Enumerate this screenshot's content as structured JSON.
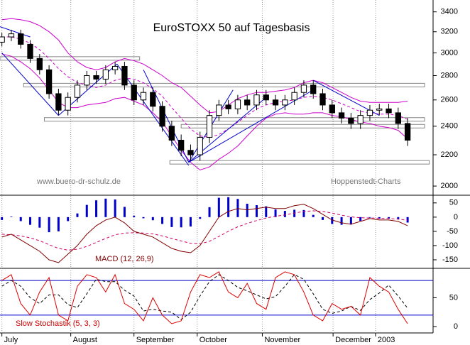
{
  "chart_data": {
    "type": "candlestick",
    "title": "EuroSTOXX 50 auf Tagesbasis",
    "watermark": "www.buero-dr-schulz.de",
    "source": "Hoppenstedt-Charts",
    "xlim": [
      -0.2,
      45.7
    ],
    "xticks": [
      {
        "value": 0,
        "label": "July"
      },
      {
        "value": 7.3,
        "label": "August"
      },
      {
        "value": 14,
        "label": "September"
      },
      {
        "value": 20.7,
        "label": "October"
      },
      {
        "value": 27.6,
        "label": "November"
      },
      {
        "value": 35.1,
        "label": "December"
      },
      {
        "value": 39.6,
        "label": "2003"
      }
    ],
    "grid": true,
    "price": {
      "ylim": [
        1945,
        3525
      ],
      "log": true,
      "yticks": [
        2000,
        2200,
        2400,
        2600,
        2800,
        3000,
        3200,
        3400
      ],
      "up_color": "#ffffff",
      "down_color": "#000000",
      "open": [
        3100,
        3150,
        3180,
        3080,
        2950,
        2850,
        2650,
        2520,
        2620,
        2720,
        2800,
        2770,
        2850,
        2880,
        2720,
        2600,
        2660,
        2550,
        2400,
        2300,
        2230,
        2200,
        2320,
        2480,
        2560,
        2530,
        2600,
        2560,
        2640,
        2600,
        2560,
        2600,
        2660,
        2720,
        2650,
        2560,
        2500,
        2460,
        2420,
        2480,
        2520,
        2530,
        2500,
        2420
      ],
      "high": [
        3190,
        3220,
        3220,
        3120,
        2990,
        2890,
        2690,
        2660,
        2760,
        2840,
        2840,
        2890,
        2920,
        2920,
        2760,
        2700,
        2700,
        2590,
        2440,
        2340,
        2270,
        2360,
        2520,
        2600,
        2600,
        2640,
        2640,
        2680,
        2680,
        2640,
        2640,
        2700,
        2760,
        2760,
        2690,
        2600,
        2540,
        2500,
        2520,
        2560,
        2570,
        2570,
        2540,
        2460
      ],
      "low": [
        3060,
        3110,
        3040,
        2910,
        2810,
        2610,
        2480,
        2480,
        2580,
        2680,
        2730,
        2730,
        2810,
        2680,
        2560,
        2560,
        2510,
        2360,
        2260,
        2190,
        2160,
        2160,
        2280,
        2440,
        2490,
        2490,
        2520,
        2520,
        2560,
        2520,
        2520,
        2560,
        2620,
        2610,
        2520,
        2460,
        2420,
        2380,
        2380,
        2440,
        2480,
        2460,
        2380,
        2260
      ],
      "close": [
        3150,
        3180,
        3080,
        2950,
        2850,
        2650,
        2520,
        2620,
        2720,
        2800,
        2770,
        2850,
        2880,
        2720,
        2600,
        2660,
        2550,
        2400,
        2300,
        2230,
        2200,
        2320,
        2480,
        2560,
        2530,
        2600,
        2560,
        2640,
        2600,
        2560,
        2600,
        2660,
        2720,
        2650,
        2560,
        2500,
        2460,
        2420,
        2480,
        2520,
        2530,
        2500,
        2420,
        2300
      ],
      "band_color": "#cc00cc",
      "band_upper": [
        3320,
        3330,
        3320,
        3300,
        3260,
        3200,
        3120,
        3000,
        2920,
        2870,
        2850,
        2870,
        2920,
        2950,
        2930,
        2900,
        2850,
        2800,
        2740,
        2700,
        2630,
        2560,
        2500,
        2510,
        2560,
        2610,
        2640,
        2660,
        2660,
        2670,
        2680,
        2700,
        2740,
        2760,
        2740,
        2700,
        2660,
        2620,
        2590,
        2580,
        2580,
        2580,
        2580,
        2590
      ],
      "band_middle": [
        3150,
        3150,
        3130,
        3090,
        3030,
        2950,
        2860,
        2790,
        2740,
        2720,
        2700,
        2720,
        2760,
        2780,
        2770,
        2740,
        2690,
        2630,
        2540,
        2460,
        2380,
        2330,
        2320,
        2340,
        2380,
        2430,
        2480,
        2530,
        2560,
        2580,
        2590,
        2600,
        2620,
        2630,
        2620,
        2600,
        2570,
        2540,
        2510,
        2500,
        2490,
        2490,
        2480,
        2450
      ],
      "band_lower": [
        2990,
        2970,
        2920,
        2860,
        2780,
        2680,
        2580,
        2540,
        2540,
        2560,
        2570,
        2580,
        2610,
        2620,
        2590,
        2560,
        2500,
        2430,
        2330,
        2230,
        2150,
        2100,
        2120,
        2170,
        2210,
        2260,
        2330,
        2400,
        2460,
        2490,
        2500,
        2490,
        2490,
        2500,
        2500,
        2480,
        2470,
        2450,
        2430,
        2420,
        2400,
        2390,
        2370,
        2310
      ],
      "level_color": "#888888",
      "levels": [
        {
          "value": 2950,
          "from": -0.2,
          "to": 14.6
        },
        {
          "value": 2720,
          "from": 2.3,
          "to": 44.8
        },
        {
          "value": 2450,
          "from": 4.5,
          "to": 44.8
        },
        {
          "value": 2400,
          "from": 19,
          "to": 44.8
        },
        {
          "value": 2150,
          "from": 17.8,
          "to": 45.3
        }
      ],
      "trend_color": "#0000cc",
      "trendlines": [
        [
          -0.2,
          3250,
          3,
          3150
        ],
        [
          0,
          3000,
          6,
          2480
        ],
        [
          6,
          2480,
          12.2,
          2900
        ],
        [
          12.2,
          2900,
          19.8,
          2130
        ],
        [
          15,
          2850,
          19.8,
          2150
        ],
        [
          19.8,
          2150,
          24.5,
          2680
        ],
        [
          19.8,
          2150,
          28,
          2620
        ],
        [
          19.8,
          2150,
          33,
          2680
        ],
        [
          33,
          2760,
          40,
          2480
        ]
      ]
    },
    "macd": {
      "label": "MACD (12, 26,9)",
      "ylim": [
        -180,
        77
      ],
      "yticks": [
        50,
        0,
        -50,
        -100,
        -150
      ],
      "line_color": "#800000",
      "signal_color": "#cc0066",
      "hist_color": "#0000cc",
      "line": [
        -70,
        -60,
        -80,
        -100,
        -120,
        -150,
        -160,
        -130,
        -100,
        -60,
        -30,
        -10,
        0,
        -20,
        -50,
        -60,
        -70,
        -90,
        -110,
        -120,
        -125,
        -100,
        -50,
        0,
        20,
        30,
        25,
        30,
        35,
        30,
        30,
        40,
        45,
        30,
        10,
        -10,
        -20,
        -25,
        -15,
        -5,
        -10,
        -10,
        -15,
        -30
      ],
      "signal": [
        -60,
        -62,
        -66,
        -73,
        -83,
        -97,
        -110,
        -116,
        -113,
        -103,
        -89,
        -75,
        -62,
        -56,
        -55,
        -56,
        -59,
        -66,
        -75,
        -84,
        -92,
        -94,
        -85,
        -68,
        -50,
        -34,
        -22,
        -12,
        -3,
        3,
        8,
        14,
        20,
        22,
        20,
        14,
        7,
        1,
        -2,
        -3,
        -4,
        -5,
        -7,
        -11
      ],
      "histogram": [
        -10,
        2,
        -14,
        -27,
        -37,
        -53,
        -50,
        -14,
        13,
        43,
        59,
        65,
        62,
        36,
        5,
        -4,
        -11,
        -24,
        -35,
        -36,
        -33,
        -6,
        35,
        68,
        70,
        64,
        47,
        42,
        38,
        27,
        22,
        26,
        25,
        8,
        -10,
        -24,
        -27,
        -26,
        -13,
        -2,
        -6,
        -5,
        -8,
        -19
      ]
    },
    "stochastic": {
      "label": "Slow Stochastik (5, 3, 3)",
      "ylim": [
        -11,
        101
      ],
      "yticks": [
        50,
        0
      ],
      "levels": [
        20,
        80
      ],
      "level_color": "#0000cc",
      "k_color": "#dd0000",
      "d_color": "#000000",
      "k": [
        80,
        90,
        40,
        20,
        60,
        85,
        20,
        10,
        70,
        90,
        85,
        60,
        90,
        40,
        30,
        10,
        50,
        20,
        5,
        10,
        60,
        90,
        85,
        95,
        60,
        50,
        75,
        40,
        30,
        85,
        95,
        90,
        60,
        20,
        10,
        40,
        30,
        35,
        20,
        85,
        70,
        60,
        30,
        5
      ],
      "d": [
        70,
        80,
        70,
        50,
        40,
        55,
        55,
        38,
        33,
        57,
        82,
        78,
        78,
        63,
        53,
        27,
        30,
        27,
        25,
        12,
        25,
        53,
        78,
        90,
        80,
        68,
        62,
        55,
        48,
        52,
        70,
        90,
        82,
        57,
        30,
        23,
        27,
        35,
        28,
        47,
        58,
        72,
        53,
        32
      ]
    }
  }
}
